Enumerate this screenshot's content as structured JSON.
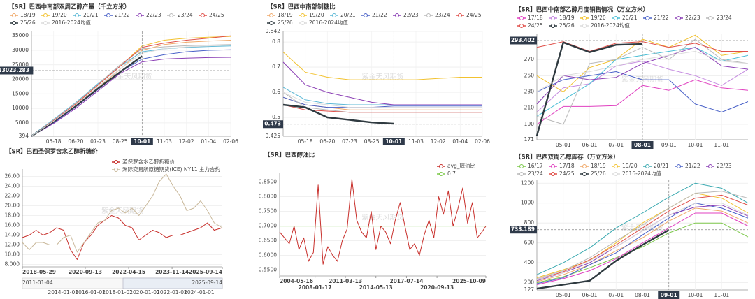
{
  "chart_data": [
    {
      "type": "line",
      "title": "【SR】巴西中南部双周乙醇产量（千立方米）",
      "watermark": "紫金天风期货",
      "categories": [
        null,
        "05-18",
        "06-20",
        "07-23",
        "08-25",
        "10-01",
        "11-03",
        "12-02",
        "01-04",
        "02-06"
      ],
      "ylim": [
        394,
        36500
      ],
      "yticks": [
        394,
        5000,
        10000,
        15000,
        20000,
        25000,
        30000,
        35000
      ],
      "grid": true,
      "crosshair": {
        "x": "10-01",
        "y": 23023.283
      },
      "series": [
        {
          "name": "18/19",
          "color": "#f0a868",
          "values": [
            500,
            5500,
            11000,
            17000,
            23500,
            30000,
            32000,
            32800,
            33200,
            33500
          ]
        },
        {
          "name": "19/20",
          "color": "#f2c230",
          "values": [
            450,
            5800,
            11500,
            18000,
            24500,
            31500,
            33500,
            34200,
            34500,
            34800
          ]
        },
        {
          "name": "20/21",
          "color": "#5bb8d6",
          "values": [
            600,
            6200,
            12000,
            18500,
            24500,
            29500,
            30500,
            31000,
            31300,
            31500
          ]
        },
        {
          "name": "21/22",
          "color": "#4a62c8",
          "values": [
            400,
            5000,
            10500,
            16500,
            22500,
            27000,
            28500,
            29500,
            30000,
            30200
          ]
        },
        {
          "name": "22/23",
          "color": "#8b3fb5",
          "values": [
            400,
            4800,
            10000,
            16000,
            22000,
            26000,
            27000,
            27300,
            27500,
            27600
          ]
        },
        {
          "name": "23/24",
          "color": "#b9b9b9",
          "values": [
            500,
            6000,
            11800,
            18200,
            25000,
            30500,
            31200,
            31600,
            31800,
            32000
          ]
        },
        {
          "name": "24/25",
          "color": "#e0504a",
          "values": [
            500,
            5800,
            11500,
            18000,
            24500,
            31000,
            32500,
            33500,
            34200,
            35000
          ]
        },
        {
          "name": "25/26",
          "color": "#2f3a40",
          "values": [
            420,
            5400,
            10800,
            16800,
            22500,
            28000,
            null,
            null,
            null,
            null
          ]
        },
        {
          "name": "2016-2024均值",
          "color": "#dcdcdc",
          "values": [
            480,
            5600,
            11200,
            17400,
            23600,
            29000,
            30500,
            31200,
            31500,
            31800
          ]
        }
      ]
    },
    {
      "type": "line",
      "title": "【SR】巴西中南部制糖比",
      "watermark": "紫金天风期货",
      "categories": [
        null,
        "05-18",
        "06-20",
        "07-23",
        "08-25",
        "10-01",
        "11-03",
        "12-02",
        "01-04",
        "02-06"
      ],
      "ylim": [
        0.425,
        0.842
      ],
      "yticks": [
        0.425,
        0.5,
        0.6,
        0.7,
        0.8,
        0.842
      ],
      "grid": true,
      "crosshair": {
        "x": "10-01",
        "y": 0.473
      },
      "series": [
        {
          "name": "18/19",
          "color": "#f0a868",
          "values": [
            0.58,
            0.55,
            0.54,
            0.53,
            0.53,
            0.53,
            0.53,
            0.53,
            0.53,
            0.53
          ]
        },
        {
          "name": "19/20",
          "color": "#f2c230",
          "values": [
            0.76,
            0.68,
            0.66,
            0.65,
            0.65,
            0.65,
            0.65,
            0.655,
            0.66,
            0.66
          ]
        },
        {
          "name": "20/21",
          "color": "#5bb8d6",
          "values": [
            0.62,
            0.57,
            0.555,
            0.55,
            0.55,
            0.55,
            0.55,
            0.55,
            0.55,
            0.55
          ]
        },
        {
          "name": "21/22",
          "color": "#4a62c8",
          "values": [
            0.58,
            0.55,
            0.54,
            0.54,
            0.54,
            0.545,
            0.545,
            0.545,
            0.545,
            0.545
          ]
        },
        {
          "name": "22/23",
          "color": "#8b3fb5",
          "values": [
            0.72,
            0.63,
            0.6,
            0.58,
            0.56,
            0.55,
            0.55,
            0.55,
            0.55,
            0.55
          ]
        },
        {
          "name": "23/24",
          "color": "#b9b9b9",
          "values": [
            0.6,
            0.54,
            0.53,
            0.52,
            0.52,
            0.52,
            0.52,
            0.52,
            0.52,
            0.52
          ]
        },
        {
          "name": "24/25",
          "color": "#e0504a",
          "values": [
            0.55,
            0.53,
            0.525,
            0.52,
            0.52,
            0.52,
            0.52,
            0.52,
            0.52,
            0.52
          ]
        },
        {
          "name": "25/26",
          "color": "#2f3a40",
          "values": [
            0.55,
            0.54,
            0.5,
            0.49,
            0.48,
            0.475,
            null,
            null,
            null,
            null
          ]
        },
        {
          "name": "2016-2024均值",
          "color": "#dcdcdc",
          "values": [
            0.6,
            0.56,
            0.55,
            0.54,
            0.54,
            0.54,
            0.54,
            0.54,
            0.54,
            0.54
          ]
        }
      ]
    },
    {
      "type": "line",
      "title": "【SR】巴西中南部乙醇月度销售情况（万立方米）",
      "watermark": "紫金天风期货",
      "categories": [
        null,
        "05-01",
        "06-01",
        "07-01",
        "08-01",
        "09-01",
        "10-01",
        "11-01",
        null
      ],
      "ylim": [
        171,
        302
      ],
      "yticks": [
        171,
        190,
        210,
        230,
        250,
        270
      ],
      "grid": true,
      "crosshair": {
        "x": "08-01",
        "y": 293.402
      },
      "series": [
        {
          "name": "17/18",
          "color": "#e040c0",
          "values": [
            190,
            212,
            212,
            213,
            238,
            232,
            245,
            235,
            232
          ]
        },
        {
          "name": "18/19",
          "color": "#c58be0",
          "values": [
            205,
            235,
            240,
            262,
            268,
            258,
            250,
            238,
            258
          ]
        },
        {
          "name": "19/20",
          "color": "#f2c230",
          "values": [
            250,
            230,
            260,
            270,
            295,
            285,
            300,
            275,
            280
          ]
        },
        {
          "name": "20/21",
          "color": "#4bbfd6",
          "values": [
            200,
            220,
            240,
            270,
            275,
            280,
            285,
            268,
            275
          ]
        },
        {
          "name": "21/22",
          "color": "#4a62c8",
          "values": [
            230,
            245,
            250,
            255,
            245,
            245,
            215,
            205,
            218
          ]
        },
        {
          "name": "22/23",
          "color": "#8b3fb5",
          "values": [
            215,
            250,
            245,
            248,
            265,
            275,
            285,
            262,
            258
          ]
        },
        {
          "name": "23/24",
          "color": "#b9b9b9",
          "values": [
            200,
            190,
            265,
            270,
            285,
            270,
            295,
            270,
            265
          ]
        },
        {
          "name": "24/25",
          "color": "#e0504a",
          "values": [
            285,
            292,
            280,
            290,
            292,
            285,
            290,
            280,
            280
          ]
        },
        {
          "name": "25/26",
          "color": "#2f3a40",
          "values": [
            176,
            291,
            279,
            288,
            289,
            null,
            null,
            null,
            null
          ]
        },
        {
          "name": "2016-2024均值",
          "color": "#dcdcdc",
          "values": [
            230,
            250,
            255,
            262,
            270,
            275,
            280,
            268,
            265
          ]
        }
      ]
    },
    {
      "type": "line",
      "title": "【SR】巴西圣保罗含水乙醇折糖价",
      "watermark": "紫金天风期货",
      "x": [
        "2018-05-29",
        "2018-08-29",
        "2018-11-29",
        "2019-02-28",
        "2019-05-29",
        "2019-08-29",
        "2019-11-29",
        "2020-02-29",
        "2020-05-29",
        "2020-08-29",
        "2020-11-29",
        "2021-02-28",
        "2021-05-29",
        "2021-08-29",
        "2021-11-29",
        "2022-02-28",
        "2022-05-29",
        "2022-08-29",
        "2022-11-29",
        "2023-02-28",
        "2023-05-29",
        "2023-08-29",
        "2023-11-29",
        "2024-02-29",
        "2024-05-29",
        "2024-08-29",
        "2024-11-29",
        "2025-02-28",
        "2025-05-29",
        "2025-09-14"
      ],
      "xlim": [
        "2018-05-29",
        "2025-09-14"
      ],
      "xticks": [
        "2018-05-29",
        "2020-09-13",
        "2022-04-15",
        "2023-11-14",
        "2025-09-14"
      ],
      "ylim": [
        7.5,
        27.5
      ],
      "yticks": [
        {
          "value": 8,
          "label": "8.000"
        },
        {
          "value": 10,
          "label": "10.00"
        },
        {
          "value": 12,
          "label": "12.00"
        },
        {
          "value": 14,
          "label": "14.00"
        },
        {
          "value": 16,
          "label": "16.00"
        },
        {
          "value": 18,
          "label": "18.00"
        },
        {
          "value": 20,
          "label": "20.00"
        },
        {
          "value": 22,
          "label": "22.00"
        },
        {
          "value": 24,
          "label": "24.00"
        },
        {
          "value": 26,
          "label": "26.00"
        }
      ],
      "grid": true,
      "navigator": {
        "xlim": [
          "2011-01-04",
          "2025-09-14"
        ],
        "ticks": [
          "2011-01-04",
          "2014-01-01",
          "2016-01-01",
          "2018-01-01",
          "2020-01-01",
          "2022-01-01",
          "2024-01-01",
          "2025-09-14"
        ]
      },
      "series": [
        {
          "name": "圣保罗含水乙醇折糖价",
          "color": "#c8302c",
          "values": [
            13.5,
            14,
            15,
            14,
            14.5,
            15.5,
            15,
            11,
            9,
            12.5,
            14,
            16,
            17,
            18,
            17.5,
            16,
            15.5,
            13,
            14,
            15,
            14.5,
            13.5,
            14,
            14,
            14.5,
            15,
            15.5,
            16.5,
            15,
            15.5
          ]
        },
        {
          "name": "洲际交易所原糖期货(ICE) NY11 主力合约",
          "color": "#c9b89a",
          "values": [
            12.5,
            11,
            12.5,
            12.5,
            12,
            12,
            13.5,
            14,
            10.5,
            12.5,
            14.5,
            16.5,
            17,
            19,
            19.5,
            18.5,
            19.5,
            18,
            20,
            22,
            25,
            26.5,
            24,
            22,
            19,
            19.5,
            21,
            19,
            16.5,
            15.5
          ]
        }
      ]
    },
    {
      "type": "line",
      "title": "【SR】巴西醇油比",
      "watermark": "紫金天风期货",
      "x": [
        "2004-05-16",
        "2004-11-16",
        "2005-05-16",
        "2005-11-16",
        "2006-05-16",
        "2006-11-16",
        "2007-05-16",
        "2007-11-16",
        "2008-05-16",
        "2008-11-16",
        "2009-05-16",
        "2009-11-16",
        "2010-05-16",
        "2010-11-16",
        "2011-05-16",
        "2011-11-16",
        "2012-05-16",
        "2012-11-16",
        "2013-05-16",
        "2013-11-16",
        "2014-05-16",
        "2014-11-16",
        "2015-05-16",
        "2015-11-16",
        "2016-05-16",
        "2016-11-16",
        "2017-05-16",
        "2017-11-16",
        "2018-05-16",
        "2018-11-16",
        "2019-05-16",
        "2019-11-16",
        "2020-05-16",
        "2020-11-16",
        "2021-05-16",
        "2021-11-16",
        "2022-05-16",
        "2022-11-16",
        "2023-05-16",
        "2023-11-16",
        "2024-05-16",
        "2024-11-16",
        "2025-05-16",
        "2025-10-09"
      ],
      "xlim": [
        "2004-05-16",
        "2025-10-09"
      ],
      "xticks": [
        "2004-05-16",
        "2008-01-17",
        "2011-03-13",
        "2014-05-13",
        "2017-07-14",
        "2020-09-13",
        "2025-10-09"
      ],
      "ylim": [
        0.53,
        0.88
      ],
      "yticks": [
        {
          "value": 0.55,
          "label": "0.5500"
        },
        {
          "value": 0.6,
          "label": "0.6000"
        },
        {
          "value": 0.65,
          "label": "0.6500"
        },
        {
          "value": 0.7,
          "label": "0.7000"
        },
        {
          "value": 0.75,
          "label": "0.7500"
        },
        {
          "value": 0.8,
          "label": "0.8000"
        },
        {
          "value": 0.85,
          "label": "0.8500"
        }
      ],
      "grid": true,
      "series": [
        {
          "name": "avg_醇油比",
          "color": "#c8302c",
          "values": [
            0.68,
            0.66,
            0.64,
            0.7,
            0.62,
            0.66,
            0.58,
            0.61,
            0.84,
            0.57,
            0.63,
            0.6,
            0.58,
            0.65,
            0.69,
            0.86,
            0.72,
            0.68,
            0.66,
            0.75,
            0.62,
            0.7,
            0.68,
            0.64,
            0.72,
            0.78,
            0.7,
            0.62,
            0.64,
            0.6,
            0.67,
            0.72,
            0.66,
            0.8,
            0.74,
            0.82,
            0.7,
            0.76,
            0.83,
            0.71,
            0.78,
            0.66,
            0.68,
            0.7
          ]
        },
        {
          "name": "0.7",
          "color": "#7cc84a",
          "x": [
            "2004-05-16",
            "2025-10-09"
          ],
          "values": [
            0.7,
            0.7
          ]
        }
      ]
    },
    {
      "type": "line",
      "title": "【SR】巴西双周乙醇库存（万立方米）",
      "watermark": "紫金天风期货",
      "categories": [
        null,
        "05-01",
        "06-01",
        "07-01",
        "08-01",
        "09-01",
        "10-01",
        "11-01",
        null
      ],
      "ylim": [
        127,
        1230
      ],
      "yticks": [
        127,
        200,
        400,
        600,
        800,
        1000,
        1200
      ],
      "grid": true,
      "crosshair": {
        "x": "09-01",
        "y": 733.189
      },
      "series": [
        {
          "name": "16/17",
          "color": "#7cc84a",
          "values": [
            200,
            260,
            350,
            450,
            560,
            700,
            800,
            800,
            660
          ]
        },
        {
          "name": "17/18",
          "color": "#e040c0",
          "values": [
            180,
            240,
            320,
            440,
            600,
            750,
            900,
            900,
            770
          ]
        },
        {
          "name": "18/19",
          "color": "#f0a868",
          "values": [
            210,
            280,
            380,
            520,
            650,
            820,
            950,
            920,
            800
          ]
        },
        {
          "name": "19/20",
          "color": "#f2c230",
          "values": [
            250,
            330,
            420,
            600,
            800,
            950,
            1100,
            1050,
            900
          ]
        },
        {
          "name": "20/21",
          "color": "#3aa9b0",
          "values": [
            280,
            400,
            550,
            750,
            900,
            1060,
            1200,
            1150,
            1000
          ]
        },
        {
          "name": "21/22",
          "color": "#4a62c8",
          "values": [
            190,
            250,
            380,
            500,
            680,
            850,
            1000,
            950,
            850
          ]
        },
        {
          "name": "22/23",
          "color": "#8b3fb5",
          "values": [
            220,
            300,
            400,
            560,
            720,
            880,
            960,
            980,
            870
          ]
        },
        {
          "name": "23/24",
          "color": "#b9b9b9",
          "values": [
            240,
            320,
            450,
            620,
            780,
            950,
            1100,
            1120,
            1050
          ]
        },
        {
          "name": "24/25",
          "color": "#e0504a",
          "values": [
            230,
            310,
            430,
            580,
            750,
            920,
            1050,
            1080,
            980
          ]
        },
        {
          "name": "25/26",
          "color": "#2f3a40",
          "values": [
            140,
            180,
            220,
            420,
            580,
            730,
            null,
            null,
            null
          ]
        },
        {
          "name": "2016-2024均值",
          "color": "#dcdcdc",
          "values": [
            230,
            300,
            420,
            560,
            720,
            880,
            1000,
            1000,
            880
          ]
        }
      ]
    }
  ]
}
